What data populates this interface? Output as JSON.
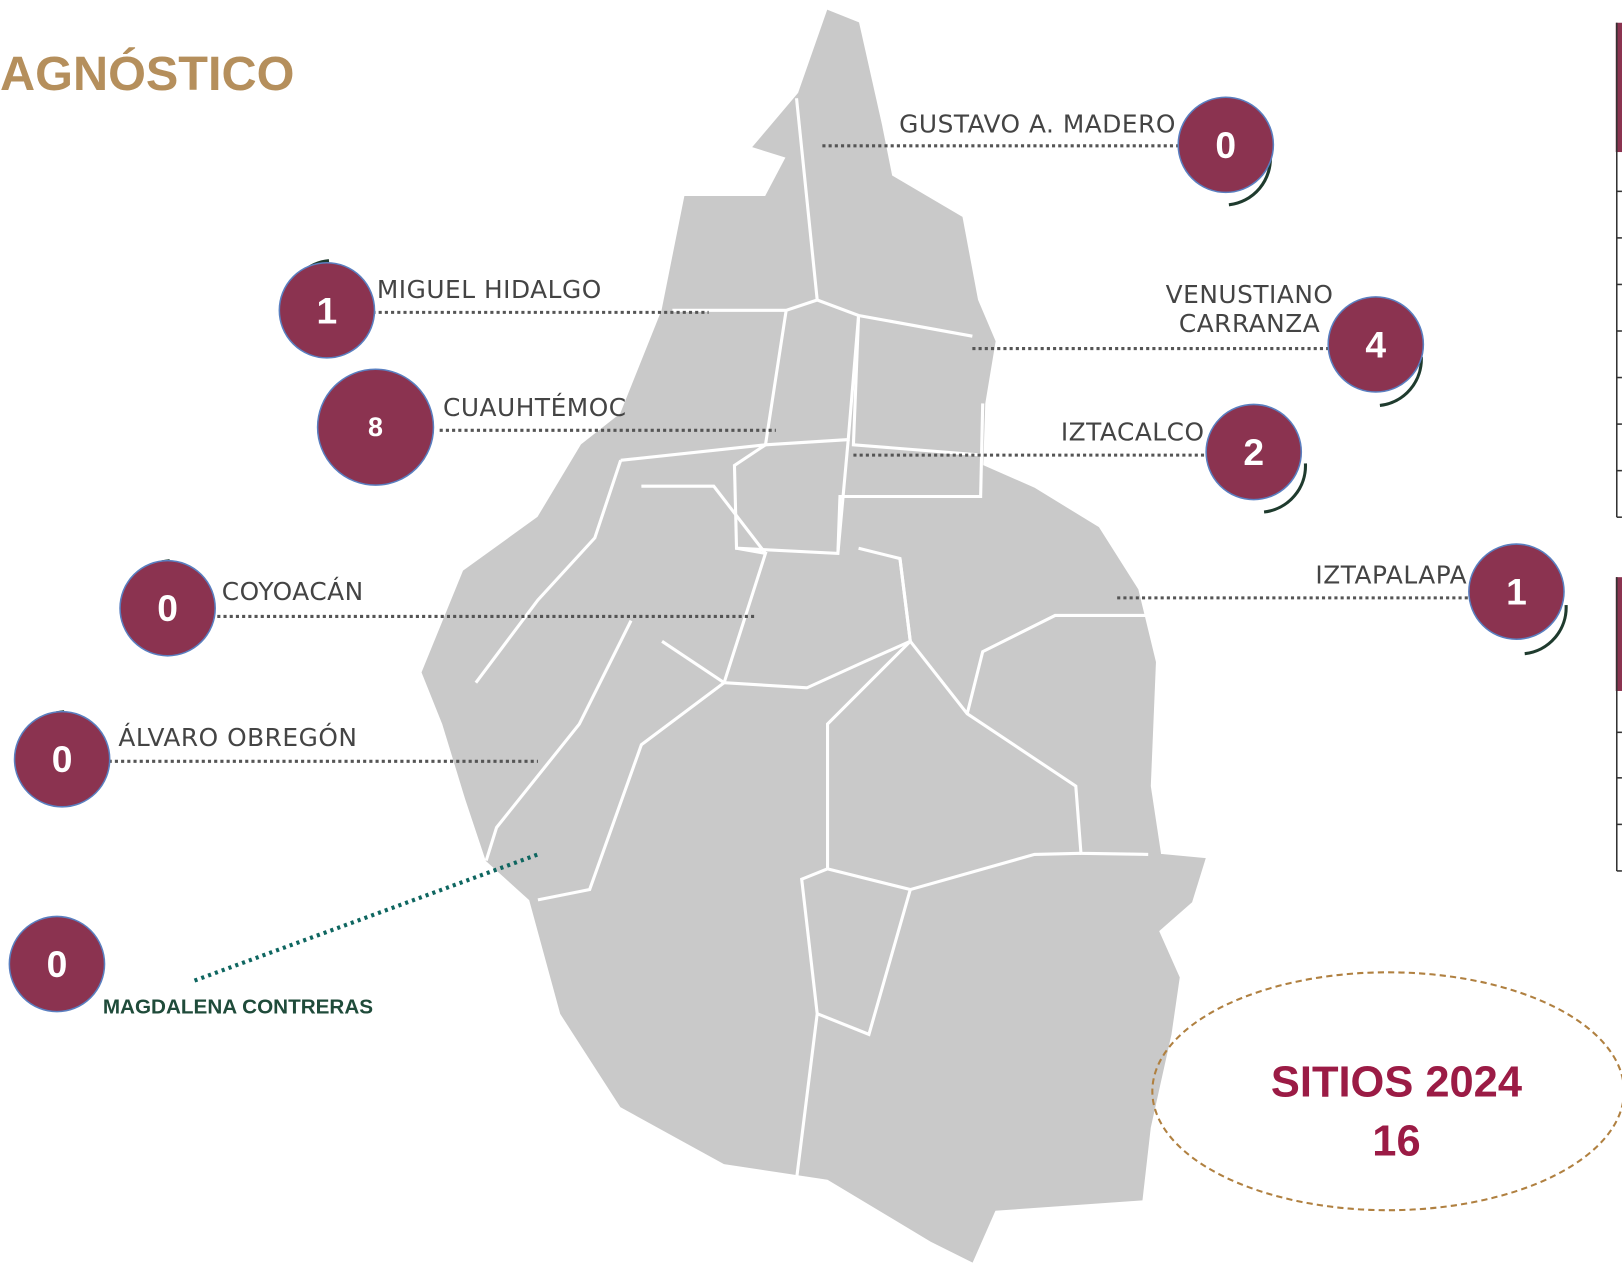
{
  "title": "AGNÓSTICO",
  "districts": [
    {
      "name": "GUSTAVO A. MADERO",
      "count": "0"
    },
    {
      "name": "MIGUEL HIDALGO",
      "count": "1"
    },
    {
      "name": "CUAUHTÉMOC",
      "count": "8"
    },
    {
      "name_lines": [
        "VENUSTIANO",
        "CARRANZA"
      ],
      "count": "4"
    },
    {
      "name": "IZTACALCO",
      "count": "2"
    },
    {
      "name": "IZTAPALAPA",
      "count": "1"
    },
    {
      "name": "COYOACÁN",
      "count": "0"
    },
    {
      "name": "ÁLVARO OBREGÓN",
      "count": "0"
    },
    {
      "name": "MAGDALENA CONTRERAS",
      "count": "0"
    }
  ],
  "total": {
    "label": "SITIOS 2024",
    "value": "16"
  }
}
